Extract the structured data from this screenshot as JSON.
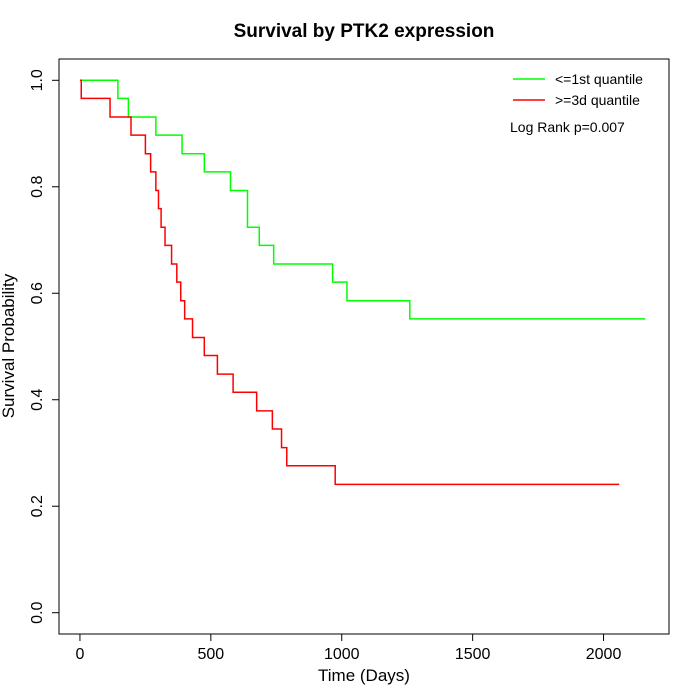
{
  "chart_data": {
    "type": "line",
    "title": "Survival by PTK2 expression",
    "xlabel": "Time (Days)",
    "ylabel": "Survival Probability",
    "xlim": [
      -80,
      2250
    ],
    "ylim": [
      -0.04,
      1.04
    ],
    "xticks": [
      0,
      500,
      1000,
      1500,
      2000
    ],
    "xtick_labels": [
      "0",
      "500",
      "1000",
      "1500",
      "2000"
    ],
    "yticks": [
      0.0,
      0.2,
      0.4,
      0.6,
      0.8,
      1.0
    ],
    "ytick_labels": [
      "0.0",
      "0.2",
      "0.4",
      "0.6",
      "0.8",
      "1.0"
    ],
    "grid": false,
    "legend_position": "top-right",
    "annotation": "Log Rank p=0.007",
    "series": [
      {
        "name": "<=1st quantile",
        "color": "#00ff00",
        "step": true,
        "x": [
          0,
          145,
          185,
          290,
          390,
          475,
          575,
          640,
          685,
          740,
          965,
          1020,
          1260,
          2160
        ],
        "y": [
          1.0,
          0.966,
          0.931,
          0.897,
          0.862,
          0.828,
          0.793,
          0.724,
          0.69,
          0.655,
          0.621,
          0.586,
          0.552,
          0.552
        ]
      },
      {
        "name": ">=3d quantile",
        "color": "#ff0000",
        "step": true,
        "x": [
          0,
          5,
          115,
          195,
          250,
          270,
          290,
          300,
          310,
          325,
          350,
          370,
          385,
          400,
          430,
          475,
          525,
          585,
          675,
          735,
          770,
          790,
          975,
          1115,
          2060
        ],
        "y": [
          1.0,
          0.966,
          0.931,
          0.897,
          0.862,
          0.828,
          0.793,
          0.759,
          0.724,
          0.69,
          0.655,
          0.621,
          0.586,
          0.552,
          0.517,
          0.483,
          0.448,
          0.414,
          0.379,
          0.345,
          0.31,
          0.276,
          0.241,
          0.241,
          0.241
        ]
      }
    ]
  }
}
